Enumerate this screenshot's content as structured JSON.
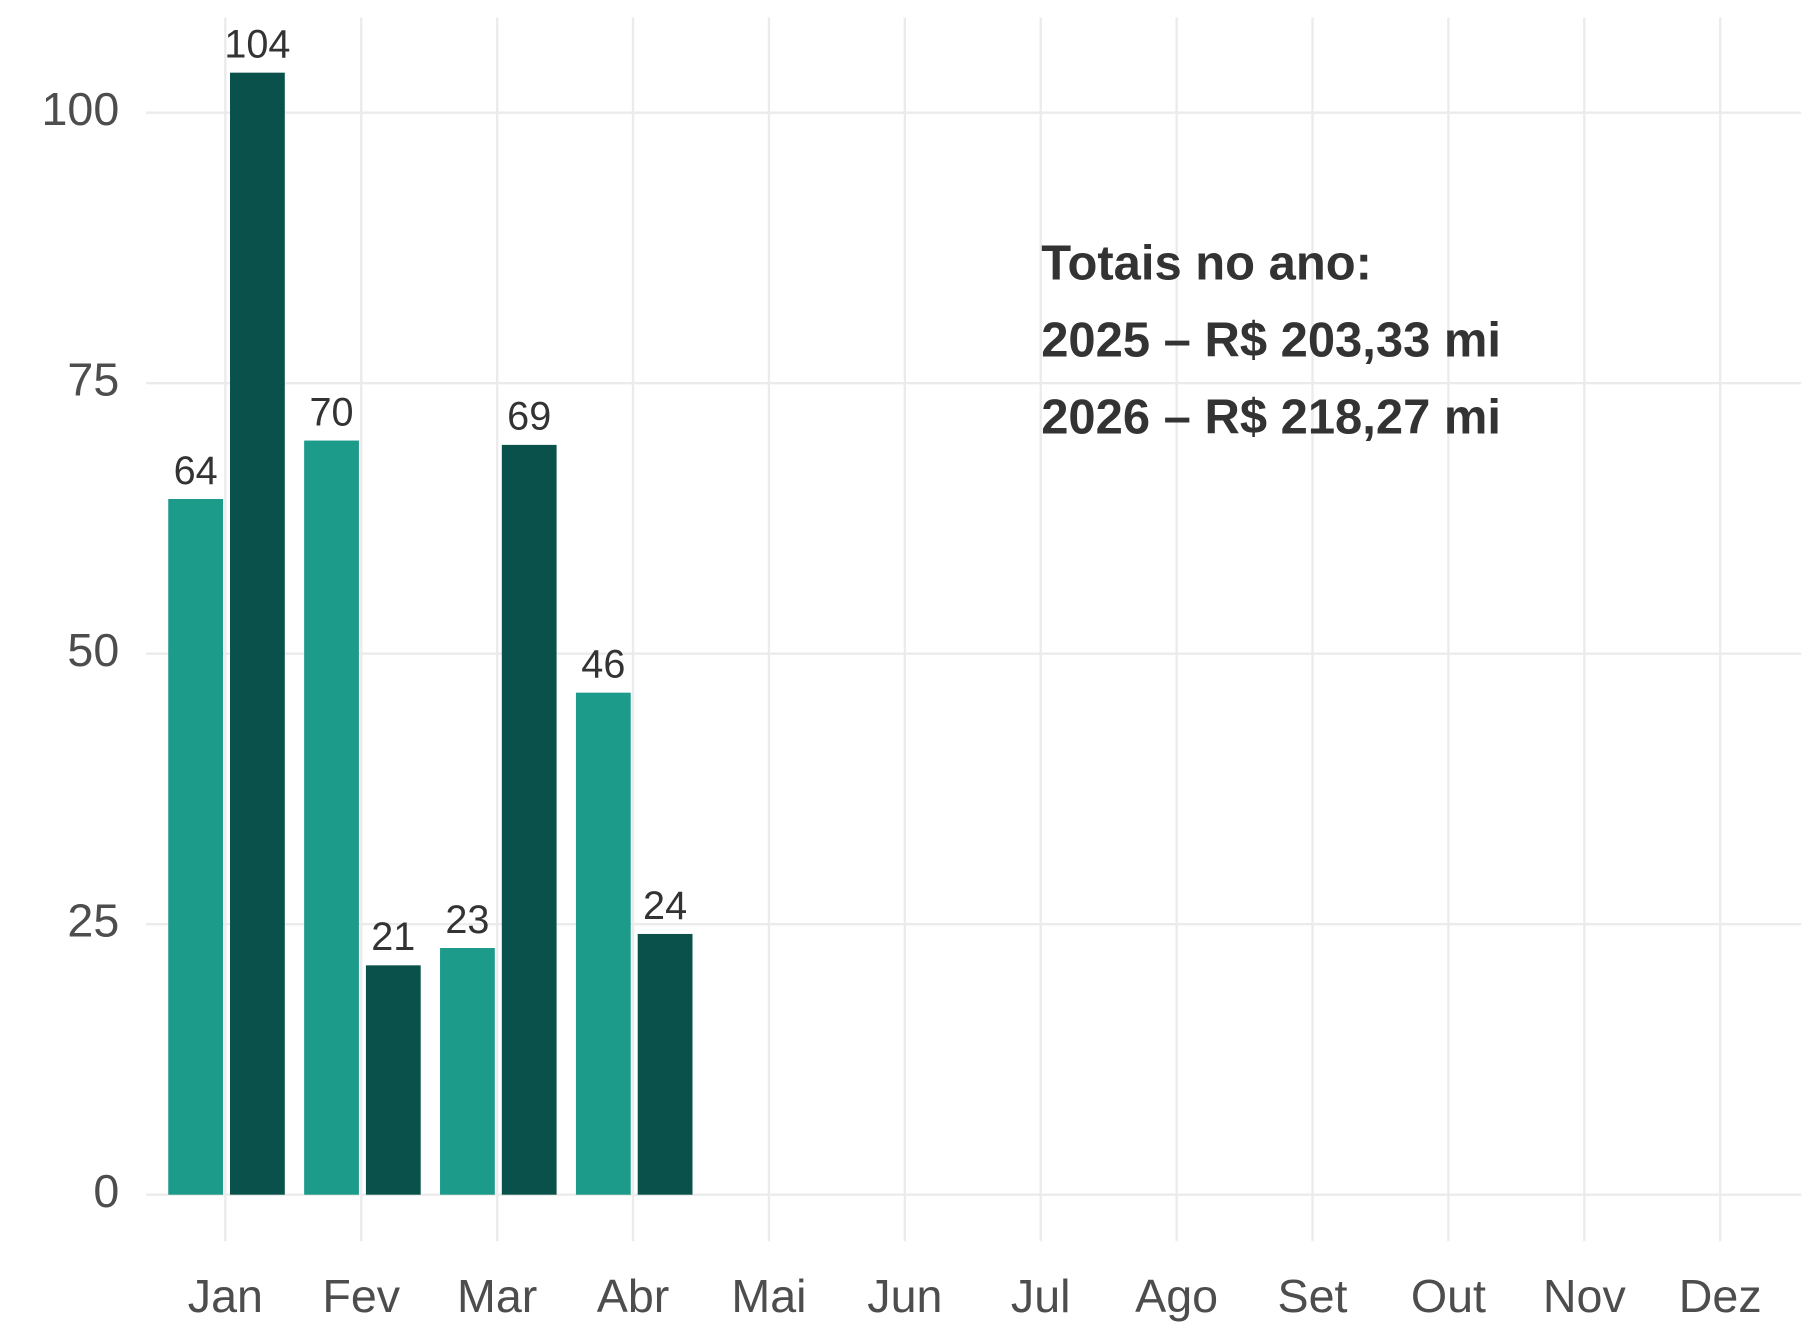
{
  "chart_data": {
    "type": "bar",
    "categories": [
      "Jan",
      "Fev",
      "Mar",
      "Abr",
      "Mai",
      "Jun",
      "Jul",
      "Ago",
      "Set",
      "Out",
      "Nov",
      "Dez"
    ],
    "series": [
      {
        "color": "#1c9a8a",
        "values": [
          64.3,
          69.7,
          22.8,
          46.4,
          null,
          null,
          null,
          null,
          null,
          null,
          null,
          null
        ],
        "value_labels": [
          "64",
          "70",
          "23",
          "46",
          null,
          null,
          null,
          null,
          null,
          null,
          null,
          null
        ]
      },
      {
        "color": "#0b514b",
        "values": [
          103.7,
          21.2,
          69.3,
          24.1,
          null,
          null,
          null,
          null,
          null,
          null,
          null,
          null
        ],
        "value_labels": [
          "104",
          "21",
          "69",
          "24",
          null,
          null,
          null,
          null,
          null,
          null,
          null,
          null
        ]
      }
    ],
    "ylim": [
      -4.3,
      108.8
    ],
    "yticks": [
      0,
      25,
      50,
      75,
      100
    ],
    "grid": true,
    "annotation": [
      "Totais no ano:",
      "2025 – R$ 203,33 mi",
      "2026 – R$ 218,27 mi"
    ]
  }
}
